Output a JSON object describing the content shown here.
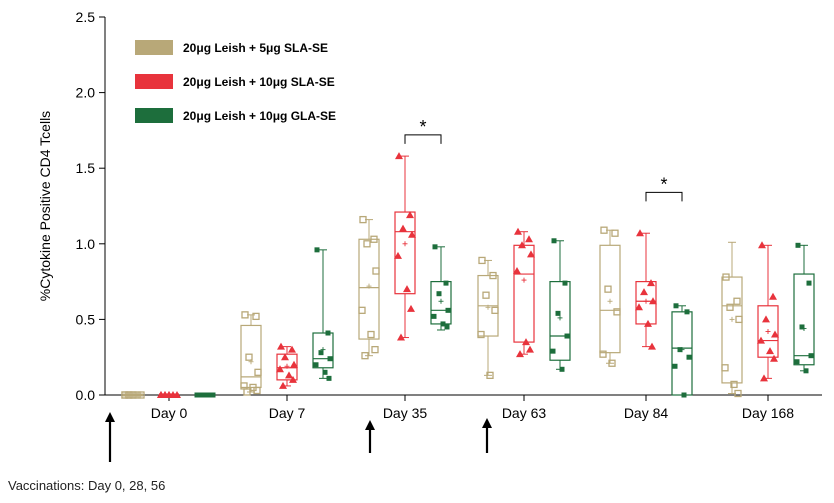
{
  "chart_data": {
    "type": "box",
    "ylabel": "%Cytokine  Positive  CD4 Tcells",
    "xlabel": "",
    "ylim": [
      0,
      2.5
    ],
    "yticks": [
      "0.0",
      "0.5",
      "1.0",
      "1.5",
      "2.0",
      "2.5"
    ],
    "categories": [
      "Day 0",
      "Day 7",
      "Day 35",
      "Day 63",
      "Day 84",
      "Day 168"
    ],
    "legend_position": "top-left",
    "series": [
      {
        "name": "20μg Leish + 5μg SLA-SE",
        "color": "#b8a878",
        "marker": "square-open",
        "boxes": [
          {
            "min": 0.0,
            "q1": 0.0,
            "median": 0.0,
            "q3": 0.0,
            "max": 0.0,
            "mean": 0.0,
            "points": [
              0,
              0,
              0,
              0,
              0,
              0,
              0,
              0
            ]
          },
          {
            "min": 0.02,
            "q1": 0.05,
            "median": 0.12,
            "q3": 0.46,
            "max": 0.53,
            "mean": 0.22,
            "points": [
              0.53,
              0.52,
              0.25,
              0.15,
              0.06,
              0.05,
              0.03,
              0.02
            ]
          },
          {
            "min": 0.26,
            "q1": 0.37,
            "median": 0.71,
            "q3": 1.03,
            "max": 1.16,
            "mean": 0.72,
            "points": [
              1.16,
              1.03,
              1.0,
              0.82,
              0.56,
              0.4,
              0.3,
              0.26
            ]
          },
          {
            "min": 0.13,
            "q1": 0.39,
            "median": 0.59,
            "q3": 0.79,
            "max": 0.89,
            "mean": 0.58,
            "points": [
              0.89,
              0.79,
              0.66,
              0.56,
              0.4,
              0.13
            ]
          },
          {
            "min": 0.21,
            "q1": 0.28,
            "median": 0.56,
            "q3": 0.99,
            "max": 1.09,
            "mean": 0.62,
            "points": [
              1.09,
              1.07,
              0.7,
              0.55,
              0.27,
              0.21
            ]
          },
          {
            "min": 0.01,
            "q1": 0.08,
            "median": 0.59,
            "q3": 0.78,
            "max": 1.01,
            "mean": 0.5,
            "points": [
              0.78,
              0.62,
              0.58,
              0.5,
              0.18,
              0.07,
              0.01
            ]
          }
        ]
      },
      {
        "name": "20μg Leish + 10μg SLA-SE",
        "color": "#e8333c",
        "marker": "triangle",
        "boxes": [
          {
            "min": 0.0,
            "q1": 0.0,
            "median": 0.0,
            "q3": 0.0,
            "max": 0.0,
            "mean": 0.0,
            "points": [
              0,
              0,
              0,
              0,
              0,
              0,
              0,
              0
            ]
          },
          {
            "min": 0.06,
            "q1": 0.1,
            "median": 0.18,
            "q3": 0.27,
            "max": 0.32,
            "mean": 0.19,
            "points": [
              0.32,
              0.3,
              0.25,
              0.2,
              0.17,
              0.13,
              0.1,
              0.06
            ]
          },
          {
            "min": 0.38,
            "q1": 0.67,
            "median": 1.08,
            "q3": 1.21,
            "max": 1.58,
            "mean": 1.0,
            "points": [
              1.58,
              1.19,
              1.1,
              1.06,
              0.92,
              0.7,
              0.57,
              0.38
            ]
          },
          {
            "min": 0.27,
            "q1": 0.35,
            "median": 0.8,
            "q3": 0.99,
            "max": 1.08,
            "mean": 0.76,
            "points": [
              1.08,
              1.03,
              0.99,
              0.93,
              0.82,
              0.35,
              0.3,
              0.27
            ]
          },
          {
            "min": 0.32,
            "q1": 0.47,
            "median": 0.62,
            "q3": 0.75,
            "max": 1.07,
            "mean": 0.62,
            "points": [
              1.07,
              0.74,
              0.68,
              0.62,
              0.58,
              0.47,
              0.32
            ]
          },
          {
            "min": 0.11,
            "q1": 0.25,
            "median": 0.36,
            "q3": 0.59,
            "max": 0.99,
            "mean": 0.42,
            "points": [
              0.99,
              0.65,
              0.5,
              0.4,
              0.36,
              0.29,
              0.24,
              0.11
            ]
          }
        ]
      },
      {
        "name": "20μg Leish + 10μg GLA-SE",
        "color": "#1d6e3c",
        "marker": "square-filled",
        "boxes": [
          {
            "min": 0.0,
            "q1": 0.0,
            "median": 0.0,
            "q3": 0.0,
            "max": 0.0,
            "mean": 0.0,
            "points": [
              0,
              0,
              0,
              0,
              0,
              0,
              0,
              0
            ]
          },
          {
            "min": 0.11,
            "q1": 0.18,
            "median": 0.24,
            "q3": 0.41,
            "max": 0.96,
            "mean": 0.3,
            "points": [
              0.96,
              0.41,
              0.28,
              0.24,
              0.2,
              0.15,
              0.11
            ]
          },
          {
            "min": 0.43,
            "q1": 0.47,
            "median": 0.56,
            "q3": 0.75,
            "max": 0.98,
            "mean": 0.62,
            "points": [
              0.98,
              0.74,
              0.67,
              0.56,
              0.52,
              0.47,
              0.45
            ]
          },
          {
            "min": 0.17,
            "q1": 0.23,
            "median": 0.39,
            "q3": 0.75,
            "max": 1.02,
            "mean": 0.51,
            "points": [
              1.02,
              0.74,
              0.54,
              0.39,
              0.29,
              0.17
            ]
          },
          {
            "min": 0.0,
            "q1": 0.0,
            "median": 0.31,
            "q3": 0.55,
            "max": 0.59,
            "mean": 0.3,
            "points": [
              0.59,
              0.55,
              0.3,
              0.25,
              0.19,
              0.0
            ]
          },
          {
            "min": 0.16,
            "q1": 0.2,
            "median": 0.26,
            "q3": 0.8,
            "max": 0.99,
            "mean": 0.44,
            "points": [
              0.99,
              0.74,
              0.45,
              0.26,
              0.22,
              0.16
            ]
          }
        ]
      }
    ],
    "annotations": [
      {
        "type": "significance",
        "label": "*",
        "category": "Day 35",
        "from_series": 1,
        "to_series": 2,
        "y": 1.72
      },
      {
        "type": "significance",
        "label": "*",
        "category": "Day 84",
        "from_series": 1,
        "to_series": 2,
        "y": 1.34
      }
    ],
    "vaccination_arrows": [
      "Day 0",
      "Day 28",
      "Day 56"
    ],
    "footnote": "Vaccinations: Day 0, 28, 56"
  }
}
